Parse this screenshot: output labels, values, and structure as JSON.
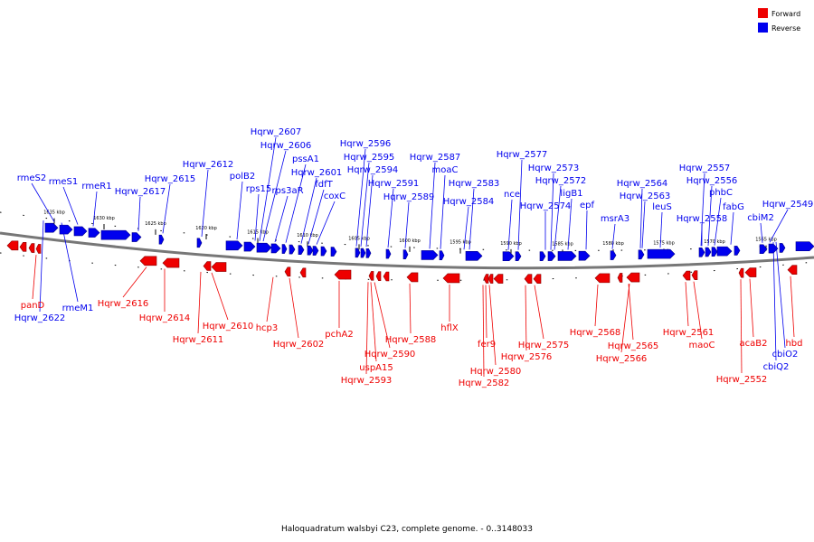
{
  "caption": "Haloquadratum walsbyi C23, complete genome. - 0..3148033",
  "legend": [
    {
      "label": "Forward",
      "color": "#ee0000"
    },
    {
      "label": "Reverse",
      "color": "#0000ee"
    }
  ],
  "ticks": [
    "1635 kbp",
    "1630 kbp",
    "1625 kbp",
    "1620 kbp",
    "1615 kbp",
    "1610 kbp",
    "1605 kbp",
    "1600 kbp",
    "1595 kbp",
    "1590 kbp",
    "1585 kbp",
    "1580 kbp",
    "1575 kbp",
    "1570 kbp",
    "1565 kbp"
  ],
  "reverse_labels": [
    "rmeS2",
    "rmeS1",
    "rmeR1",
    "Hqrw_2617",
    "Hqrw_2615",
    "Hqrw_2612",
    "polB2",
    "rps15",
    "Hqrw_2607",
    "Hqrw_2606",
    "rps3aR",
    "pssA1",
    "Hqrw_2601",
    "fdfT",
    "coxC",
    "Hqrw_2596",
    "Hqrw_2595",
    "Hqrw_2594",
    "Hqrw_2591",
    "Hqrw_2589",
    "Hqrw_2587",
    "moaC",
    "Hqrw_2583",
    "Hqrw_2584",
    "nce",
    "Hqrw_2577",
    "Hqrw_2573",
    "Hqrw_2572",
    "Hqrw_2574",
    "ligB1",
    "epf",
    "msrA3",
    "Hqrw_2564",
    "Hqrw_2563",
    "leuS",
    "Hqrw_2557",
    "Hqrw_2556",
    "phbC",
    "Hqrw_2558",
    "fabG",
    "cbiM2",
    "Hqrw_2549",
    "rmeM1",
    "Hqrw_2622",
    "cbiO2",
    "cbiQ2"
  ],
  "forward_labels": [
    "panD",
    "Hqrw_2616",
    "Hqrw_2614",
    "Hqrw_2611",
    "Hqrw_2610",
    "hcp3",
    "Hqrw_2602",
    "pchA2",
    "Hqrw_2590",
    "uspA15",
    "Hqrw_2593",
    "Hqrw_2588",
    "hflX",
    "fer9",
    "Hqrw_2580",
    "Hqrw_2582",
    "Hqrw_2576",
    "Hqrw_2575",
    "Hqrw_2568",
    "Hqrw_2565",
    "Hqrw_2566",
    "Hqrw_2561",
    "maoC",
    "acaB2",
    "Hqrw_2552",
    "hbd"
  ]
}
